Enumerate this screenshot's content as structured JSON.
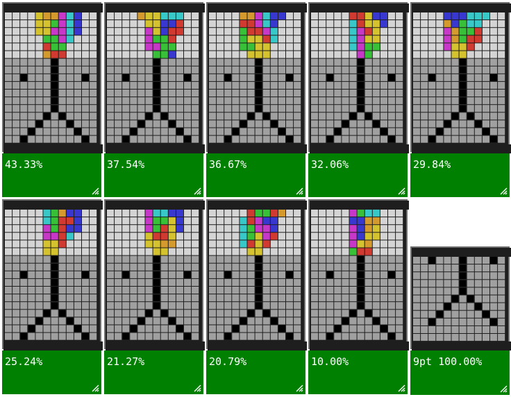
{
  "colors": {
    "frame": "#1e1e1e",
    "empty_light": "#d4d4d4",
    "empty_dark": "#a0a0a0",
    "wall": "#000000",
    "label_bg": "#008000",
    "label_text": "#ffffff",
    "piece_palette": {
      "Y": "#d4c22e",
      "O": "#d49a2e",
      "R": "#d03a30",
      "G": "#38c038",
      "M": "#c838c8",
      "C": "#38c8c8",
      "B": "#3838d0",
      "K": "#000000"
    }
  },
  "cards": [
    {
      "label": "43.33%",
      "pieces": [
        "..YOOMCB",
        "..YYGMCB",
        "..YYMMCB",
        "...GGMC.",
        "...RGG..",
        "...ORR.."
      ]
    },
    {
      "label": "37.54%",
      "pieces": [
        "..OYYCCC",
        "...YYBBR",
        "...MYBRR",
        "...MGGR.",
        "...MMGG.",
        "....GGB."
      ]
    },
    {
      "label": "36.67%",
      "pieces": [
        "..OOMCBB",
        "..RRMCB.",
        "..GRRMC.",
        "..GYYRC.",
        "..GGYY..",
        "...YYY.."
      ]
    },
    {
      "label": "32.06%",
      "pieces": [
        "...RRYBB",
        "...CRYYB",
        "...CMRY.",
        "...CMYY.",
        "...CMGG.",
        "....MG.."
      ]
    },
    {
      "label": "29.84%",
      "pieces": [
        "..BBBCCC",
        "..OBGCC.",
        "..MOGGR.",
        "..MOGRR.",
        "..MYYR..",
        "...YY..."
      ]
    },
    {
      "label": "25.24%",
      "pieces": [
        "...CGOBB",
        "...CGRRB",
        "...MGRBB",
        "...MMRC.",
        "...YYR..",
        "...YY..."
      ]
    },
    {
      "label": "21.27%",
      "pieces": [
        "...MCCBB",
        "...MGGYB",
        "...MGRYB",
        "...YRRY.",
        "...YYOO.",
        "....YY.."
      ]
    },
    {
      "label": "20.79%",
      "pieces": [
        "...RGGRO",
        "..CRMBB.",
        "..CGMMB.",
        "..CGYMR.",
        "..CRYR..",
        "...YY..."
      ]
    },
    {
      "label": "10.00%",
      "pieces": [
        "...MGCC.",
        "...BBOO.",
        "...MBOY.",
        "...MBYY.",
        "...MYO..",
        "...GRR.."
      ]
    },
    {
      "label": "9pt 100.00%",
      "pieces": null
    }
  ]
}
